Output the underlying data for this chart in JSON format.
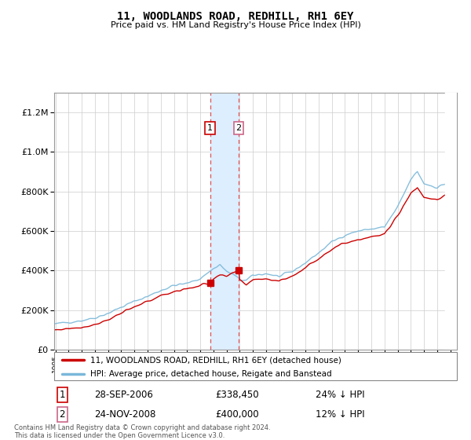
{
  "title": "11, WOODLANDS ROAD, REDHILL, RH1 6EY",
  "subtitle": "Price paid vs. HM Land Registry's House Price Index (HPI)",
  "legend_line1": "11, WOODLANDS ROAD, REDHILL, RH1 6EY (detached house)",
  "legend_line2": "HPI: Average price, detached house, Reigate and Banstead",
  "transaction1_date": "28-SEP-2006",
  "transaction1_price": "£338,450",
  "transaction1_hpi": "24% ↓ HPI",
  "transaction1_year": 2006.75,
  "transaction1_value": 338450,
  "transaction2_date": "24-NOV-2008",
  "transaction2_price": "£400,000",
  "transaction2_hpi": "12% ↓ HPI",
  "transaction2_year": 2008.92,
  "transaction2_value": 400000,
  "footer": "Contains HM Land Registry data © Crown copyright and database right 2024.\nThis data is licensed under the Open Government Licence v3.0.",
  "hpi_color": "#7ab8d9",
  "price_color": "#cc0000",
  "highlight_fill": "#ddeeff",
  "highlight_border1": "#cc0000",
  "highlight_border2": "#cc6688",
  "ylim": [
    0,
    1300000
  ],
  "xlim_start": 1994.9,
  "xlim_end": 2025.5,
  "hpi_anchors_years": [
    1995,
    1996,
    1997,
    1998,
    1999,
    2000,
    2001,
    2002,
    2003,
    2004,
    2005,
    2006,
    2007,
    2007.5,
    2008,
    2008.5,
    2009,
    2009.5,
    2010,
    2011,
    2012,
    2013,
    2014,
    2015,
    2016,
    2017,
    2018,
    2019,
    2020,
    2021,
    2022,
    2022.5,
    2023,
    2024,
    2025
  ],
  "hpi_anchors_vals": [
    130000,
    140000,
    148000,
    162000,
    185000,
    215000,
    245000,
    270000,
    300000,
    325000,
    335000,
    360000,
    410000,
    430000,
    395000,
    380000,
    355000,
    350000,
    375000,
    385000,
    370000,
    395000,
    440000,
    490000,
    545000,
    580000,
    600000,
    610000,
    620000,
    720000,
    860000,
    900000,
    840000,
    820000,
    850000
  ],
  "price_anchors_years": [
    1995,
    1996,
    1997,
    1998,
    1999,
    2000,
    2001,
    2002,
    2003,
    2004,
    2005,
    2006,
    2006.75,
    2007,
    2007.5,
    2008,
    2008.92,
    2009,
    2009.5,
    2010,
    2011,
    2012,
    2013,
    2014,
    2015,
    2016,
    2017,
    2018,
    2019,
    2020,
    2021,
    2022,
    2022.5,
    2023,
    2024,
    2025
  ],
  "price_anchors_vals": [
    100000,
    108000,
    114000,
    128000,
    152000,
    185000,
    215000,
    245000,
    272000,
    295000,
    308000,
    325000,
    338450,
    360000,
    375000,
    370000,
    400000,
    350000,
    330000,
    355000,
    360000,
    348000,
    372000,
    415000,
    462000,
    510000,
    540000,
    558000,
    570000,
    582000,
    680000,
    790000,
    820000,
    770000,
    760000,
    790000
  ]
}
